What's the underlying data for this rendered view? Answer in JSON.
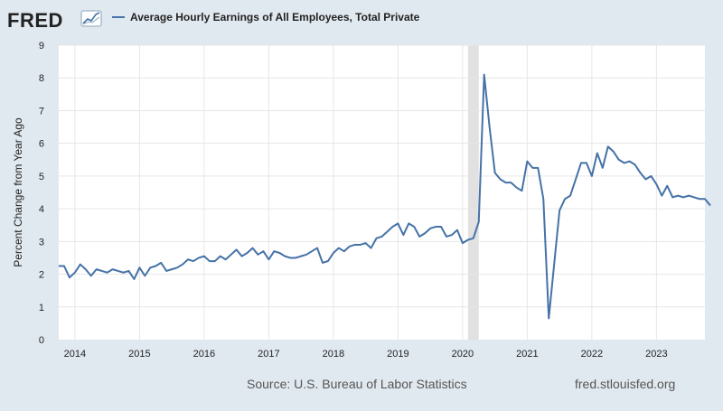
{
  "header": {
    "logo_text": "FRED",
    "legend_label": "Average Hourly Earnings of All Employees, Total Private"
  },
  "footer": {
    "source": "Source: U.S. Bureau of Labor Statistics",
    "site": "fred.stlouisfed.org"
  },
  "colors": {
    "page_background": "#e1e9f0",
    "plot_background": "#ffffff",
    "line": "#4572a7",
    "gridline": "#e6e6e6",
    "recession_shading": "#e1e1e1",
    "text": "#222222",
    "footer_text": "#555555"
  },
  "chart_data": {
    "type": "line",
    "ylabel": "Percent Change from Year Ago",
    "ylim": [
      0,
      9
    ],
    "yticks": [
      0,
      1,
      2,
      3,
      4,
      5,
      6,
      7,
      8,
      9
    ],
    "xlim": [
      "2013-10",
      "2023-10"
    ],
    "xtick_labels": [
      "2014",
      "2015",
      "2016",
      "2017",
      "2018",
      "2019",
      "2020",
      "2021",
      "2022",
      "2023"
    ],
    "grid": true,
    "legend_position": "top-left",
    "recession_shading": [
      {
        "start": "2020-02",
        "end": "2020-04"
      }
    ],
    "series": [
      {
        "name": "Average Hourly Earnings of All Employees, Total Private",
        "color": "#4572a7",
        "start": "2013-10",
        "frequency": "monthly",
        "values": [
          2.25,
          2.25,
          1.9,
          2.05,
          2.3,
          2.15,
          1.95,
          2.15,
          2.1,
          2.05,
          2.15,
          2.1,
          2.05,
          2.1,
          1.85,
          2.2,
          1.95,
          2.2,
          2.25,
          2.35,
          2.1,
          2.15,
          2.2,
          2.3,
          2.45,
          2.4,
          2.5,
          2.55,
          2.4,
          2.4,
          2.55,
          2.45,
          2.6,
          2.75,
          2.55,
          2.65,
          2.8,
          2.6,
          2.7,
          2.45,
          2.7,
          2.65,
          2.55,
          2.5,
          2.5,
          2.55,
          2.6,
          2.7,
          2.8,
          2.35,
          2.4,
          2.65,
          2.8,
          2.7,
          2.85,
          2.9,
          2.9,
          2.95,
          2.8,
          3.1,
          3.15,
          3.3,
          3.45,
          3.55,
          3.2,
          3.55,
          3.45,
          3.15,
          3.25,
          3.4,
          3.45,
          3.45,
          3.15,
          3.2,
          3.35,
          2.95,
          3.05,
          3.1,
          3.6,
          8.1,
          6.5,
          5.1,
          4.9,
          4.8,
          4.8,
          4.65,
          4.55,
          5.45,
          5.25,
          5.25,
          4.3,
          0.65,
          2.3,
          3.95,
          4.3,
          4.4,
          4.9,
          5.4,
          5.4,
          5.0,
          5.7,
          5.25,
          5.9,
          5.75,
          5.5,
          5.4,
          5.45,
          5.35,
          5.1,
          4.9,
          5.0,
          4.75,
          4.4,
          4.7,
          4.35,
          4.4,
          4.35,
          4.4,
          4.35,
          4.3,
          4.3,
          4.1
        ]
      }
    ]
  }
}
